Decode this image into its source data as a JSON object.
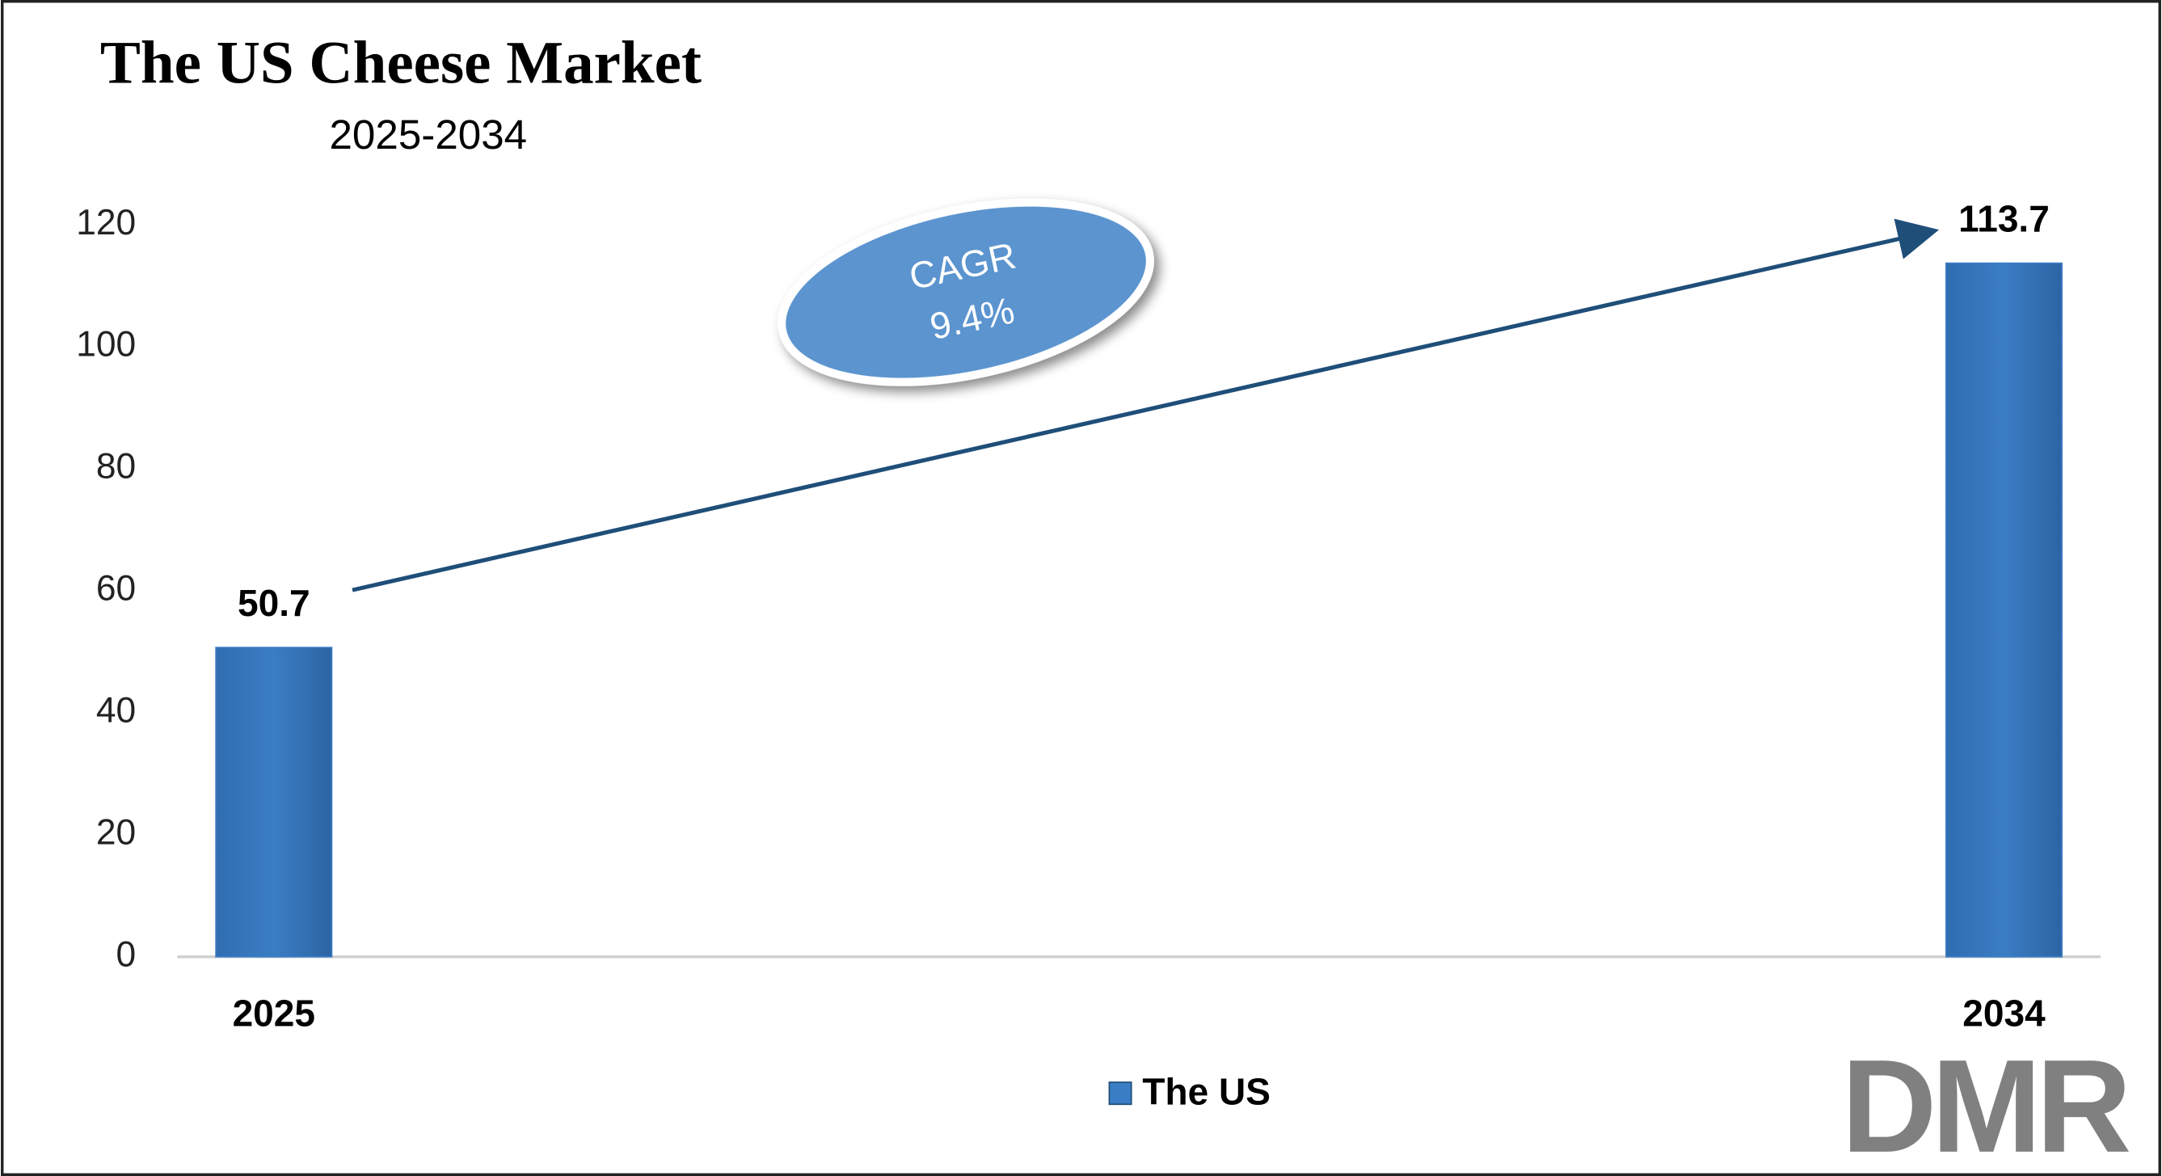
{
  "chart_data": {
    "type": "bar",
    "title": "The US Cheese Market",
    "subtitle": "2025-2034",
    "categories": [
      "2025",
      "2034"
    ],
    "series": [
      {
        "name": "The US",
        "color": "#3b7dc4",
        "values": [
          50.7,
          113.7
        ]
      }
    ],
    "ylim": [
      0,
      120
    ],
    "yticks": [
      0,
      20,
      40,
      60,
      80,
      100,
      120
    ],
    "grid": false,
    "annotation": {
      "label": "CAGR",
      "value": "9.4%"
    },
    "logo": "DMR"
  }
}
